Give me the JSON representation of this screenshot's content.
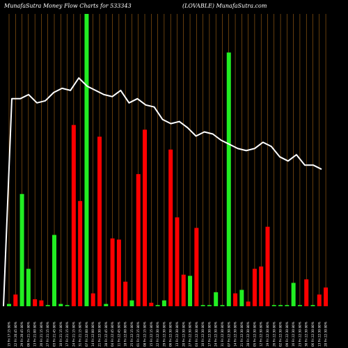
{
  "chart_data": {
    "type": "bar",
    "title_left": "MunafaSutra  Money Flow  Charts for 533343",
    "title_right": "(LOVABLE) MunafaSutra.com",
    "categories": [
      "15 Fri 17:15 80%",
      "22 Fri 20:45 80%",
      "29 Fri 20:45 80%",
      "06 Fri 21:15 80%",
      "13 Fri 21:00 80%",
      "20 Fri 21:15 80%",
      "27 Fri 21:15 80%",
      "03 Fri 21:45 80%",
      "10 Fri 21:15 80%",
      "17 Fri 21:15 80%",
      "24 Fri 21:15 80%",
      "31 Fri 21:15 80%",
      "07 Fri 22:00 80%",
      "14 Fri 22:00 80%",
      "21 Fri 22:30 80%",
      "28 Fri 22:45 80%",
      "04 Fri 22:45 80%",
      "11 Fri 22:45 80%",
      "18 Fri 22:00 80%",
      "25 Fri 22:15 80%",
      "01 Fri 22:15 80%",
      "08 Fri 22:15 80%",
      "15 Fri 22:15 80%",
      "22 Fri 22:30 80%",
      "29 Fri 22:30 80%",
      "06 Fri 22:30 80%",
      "13 Fri 22:30 80%",
      "20 Fri 22:30 80%",
      "27 Fri 22:30 80%",
      "03 Fri 22:30 80%",
      "10 Fri 22:30 80%",
      "17 Fri 22:30 80%",
      "24 Fri 22:30 80%",
      "31 Fri 22:30 80%",
      "07 Fri 22:30 80%",
      "14 Fri 22:30 80%",
      "21 Fri 22:30 80%",
      "28 Fri 22:30 80%",
      "05 Fri 22:30 80%",
      "12 Fri 22:30 80%",
      "19 Fri 22:30 80%",
      "26 Fri 22:30 80%",
      "02 Fri 22:30 80%",
      "09 Fri 22:30 80%",
      "16 Fri 22:30 80%",
      "23 Fri 22:30 80%",
      "30 Fri 22:30 80%",
      "06 Fri 22:30 80%",
      "13 Fri 22:30 80%",
      "20 Fri 22:30 80%"
    ],
    "colors": {
      "up": "#22ee22",
      "down": "#ff0000",
      "price": "#ffffff",
      "grid": "#c87a1a",
      "background": "#000000"
    },
    "bars": [
      {
        "dir": "up",
        "v": 2
      },
      {
        "dir": "down",
        "v": 10
      },
      {
        "dir": "up",
        "v": 96
      },
      {
        "dir": "up",
        "v": 32
      },
      {
        "dir": "down",
        "v": 6
      },
      {
        "dir": "down",
        "v": 5
      },
      {
        "dir": "up",
        "v": 1
      },
      {
        "dir": "up",
        "v": 61
      },
      {
        "dir": "up",
        "v": 2
      },
      {
        "dir": "up",
        "v": 1
      },
      {
        "dir": "down",
        "v": 155
      },
      {
        "dir": "down",
        "v": 90
      },
      {
        "dir": "up",
        "v": 250
      },
      {
        "dir": "down",
        "v": 11
      },
      {
        "dir": "down",
        "v": 145
      },
      {
        "dir": "up",
        "v": 2
      },
      {
        "dir": "down",
        "v": 58
      },
      {
        "dir": "down",
        "v": 57
      },
      {
        "dir": "down",
        "v": 21
      },
      {
        "dir": "up",
        "v": 5
      },
      {
        "dir": "down",
        "v": 113
      },
      {
        "dir": "down",
        "v": 151
      },
      {
        "dir": "down",
        "v": 3
      },
      {
        "dir": "up",
        "v": 1
      },
      {
        "dir": "up",
        "v": 5
      },
      {
        "dir": "down",
        "v": 134
      },
      {
        "dir": "down",
        "v": 76
      },
      {
        "dir": "down",
        "v": 27
      },
      {
        "dir": "up",
        "v": 26
      },
      {
        "dir": "down",
        "v": 67
      },
      {
        "dir": "up",
        "v": 1
      },
      {
        "dir": "up",
        "v": 1
      },
      {
        "dir": "up",
        "v": 12
      },
      {
        "dir": "up",
        "v": 1
      },
      {
        "dir": "up",
        "v": 217
      },
      {
        "dir": "down",
        "v": 11
      },
      {
        "dir": "up",
        "v": 14
      },
      {
        "dir": "down",
        "v": 4
      },
      {
        "dir": "down",
        "v": 32
      },
      {
        "dir": "down",
        "v": 34
      },
      {
        "dir": "down",
        "v": 68
      },
      {
        "dir": "up",
        "v": 1
      },
      {
        "dir": "up",
        "v": 1
      },
      {
        "dir": "up",
        "v": 1
      },
      {
        "dir": "up",
        "v": 20
      },
      {
        "dir": "up",
        "v": 1
      },
      {
        "dir": "down",
        "v": 23
      },
      {
        "dir": "up",
        "v": 1
      },
      {
        "dir": "down",
        "v": 10
      },
      {
        "dir": "down",
        "v": 16
      }
    ],
    "price_line": [
      0,
      100,
      100,
      102,
      98,
      99,
      103,
      105,
      104,
      110,
      106,
      104,
      102,
      101,
      104,
      98,
      100,
      97,
      96,
      90,
      88,
      89,
      86,
      82,
      84,
      83,
      80,
      78,
      76,
      75,
      76,
      79,
      77,
      72,
      70,
      73,
      68,
      68,
      66
    ]
  }
}
